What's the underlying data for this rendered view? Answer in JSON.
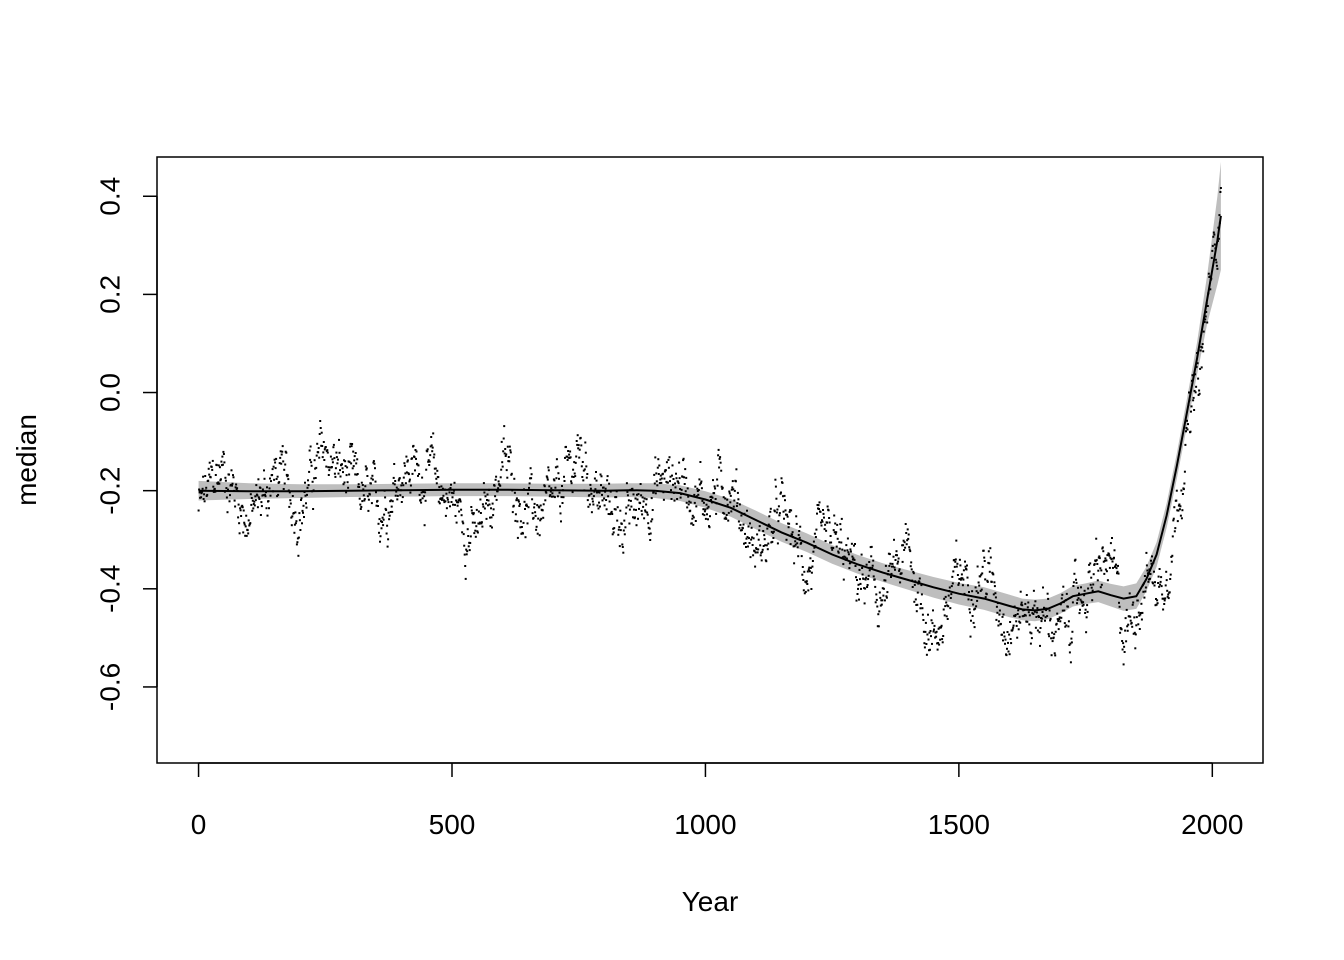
{
  "chart_data": {
    "type": "scatter",
    "title": "",
    "xlabel": "Year",
    "ylabel": "median",
    "xlim": [
      -82,
      2100
    ],
    "ylim": [
      -0.755,
      0.48
    ],
    "x_ticks": [
      0,
      500,
      1000,
      1500,
      2000
    ],
    "x_tick_labels": [
      "0",
      "500",
      "1000",
      "1500",
      "2000"
    ],
    "y_ticks": [
      -0.6,
      -0.4,
      -0.2,
      0.0,
      0.2,
      0.4
    ],
    "y_tick_labels": [
      "-0.6",
      "-0.4",
      "-0.2",
      "0.0",
      "0.2",
      "0.4"
    ],
    "grid": false,
    "legend": "none",
    "colors": {
      "points": "#000000",
      "smooth_line": "#000000",
      "confidence_band": "#bebebe"
    },
    "series": [
      {
        "kind": "points",
        "x_range": [
          0,
          2017
        ],
        "x_step": 1,
        "annual_values_note_omitted": true,
        "values_by_decade_mean": [
          [
            0,
            -0.24
          ],
          [
            50,
            -0.15
          ],
          [
            100,
            -0.26
          ],
          [
            150,
            -0.17
          ],
          [
            200,
            -0.23
          ],
          [
            250,
            -0.12
          ],
          [
            300,
            -0.19
          ],
          [
            350,
            -0.25
          ],
          [
            400,
            -0.15
          ],
          [
            450,
            -0.16
          ],
          [
            500,
            -0.22
          ],
          [
            550,
            -0.3
          ],
          [
            600,
            -0.14
          ],
          [
            650,
            -0.24
          ],
          [
            700,
            -0.25
          ],
          [
            750,
            -0.12
          ],
          [
            800,
            -0.23
          ],
          [
            850,
            -0.26
          ],
          [
            900,
            -0.19
          ],
          [
            950,
            -0.17
          ],
          [
            1000,
            -0.22
          ],
          [
            1050,
            -0.18
          ],
          [
            1100,
            -0.33
          ],
          [
            1150,
            -0.25
          ],
          [
            1200,
            -0.36
          ],
          [
            1250,
            -0.31
          ],
          [
            1300,
            -0.38
          ],
          [
            1350,
            -0.42
          ],
          [
            1400,
            -0.33
          ],
          [
            1450,
            -0.5
          ],
          [
            1500,
            -0.38
          ],
          [
            1550,
            -0.36
          ],
          [
            1600,
            -0.46
          ],
          [
            1650,
            -0.44
          ],
          [
            1700,
            -0.49
          ],
          [
            1750,
            -0.4
          ],
          [
            1800,
            -0.35
          ],
          [
            1825,
            -0.5
          ],
          [
            1850,
            -0.42
          ],
          [
            1875,
            -0.36
          ],
          [
            1900,
            -0.4
          ],
          [
            1925,
            -0.26
          ],
          [
            1950,
            -0.08
          ],
          [
            1975,
            0.02
          ],
          [
            2000,
            0.26
          ],
          [
            2010,
            0.32
          ],
          [
            2015,
            0.44
          ]
        ]
      },
      {
        "kind": "smooth",
        "x": [
          0,
          100,
          200,
          300,
          400,
          500,
          600,
          700,
          800,
          850,
          900,
          950,
          1000,
          1050,
          1100,
          1150,
          1200,
          1250,
          1300,
          1350,
          1400,
          1450,
          1500,
          1550,
          1600,
          1625,
          1650,
          1675,
          1700,
          1725,
          1750,
          1775,
          1800,
          1825,
          1850,
          1870,
          1890,
          1910,
          1930,
          1950,
          1970,
          1990,
          2010,
          2017
        ],
        "y": [
          -0.2,
          -0.201,
          -0.201,
          -0.2,
          -0.199,
          -0.198,
          -0.198,
          -0.199,
          -0.2,
          -0.199,
          -0.2,
          -0.205,
          -0.218,
          -0.235,
          -0.26,
          -0.285,
          -0.306,
          -0.33,
          -0.35,
          -0.367,
          -0.382,
          -0.397,
          -0.41,
          -0.42,
          -0.435,
          -0.442,
          -0.444,
          -0.441,
          -0.43,
          -0.415,
          -0.41,
          -0.405,
          -0.413,
          -0.42,
          -0.415,
          -0.38,
          -0.33,
          -0.25,
          -0.15,
          -0.04,
          0.07,
          0.19,
          0.31,
          0.36
        ],
        "ci_half_width": [
          0.02,
          0.016,
          0.014,
          0.013,
          0.013,
          0.013,
          0.013,
          0.013,
          0.014,
          0.014,
          0.015,
          0.016,
          0.017,
          0.018,
          0.019,
          0.019,
          0.019,
          0.019,
          0.019,
          0.019,
          0.02,
          0.021,
          0.022,
          0.023,
          0.023,
          0.022,
          0.022,
          0.021,
          0.021,
          0.021,
          0.021,
          0.022,
          0.023,
          0.025,
          0.026,
          0.025,
          0.025,
          0.025,
          0.026,
          0.028,
          0.033,
          0.05,
          0.09,
          0.11
        ]
      }
    ]
  }
}
